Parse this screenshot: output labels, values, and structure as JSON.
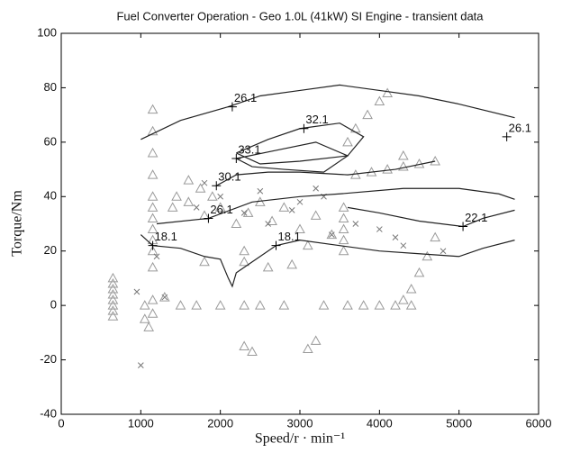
{
  "chart_data": {
    "type": "contour",
    "title": "Fuel Converter Operation - Geo 1.0L (41kW) SI Engine - transient data",
    "x_label": "Speed/r · min⁻¹",
    "y_label": "Torque/Nm",
    "xlim": [
      0,
      6000
    ],
    "xticks": [
      0,
      1000,
      2000,
      3000,
      4000,
      5000,
      6000
    ],
    "ylim": [
      -40,
      100
    ],
    "yticks": [
      -40,
      -20,
      0,
      20,
      40,
      60,
      80,
      100
    ],
    "contour_color": "#222222",
    "contours": [
      {
        "level": 26.1,
        "x": [
          1000,
          1500,
          2100,
          2500,
          3000,
          3500,
          4000,
          4500,
          5000,
          5700
        ],
        "y": [
          61,
          68,
          73,
          77,
          79,
          81,
          79,
          77,
          74,
          69
        ],
        "label_points": [
          [
            2150,
            73
          ],
          [
            5600,
            62
          ]
        ]
      },
      {
        "level": 32.1,
        "x": [
          2200,
          2600,
          3000,
          3500,
          3800,
          3600,
          3000,
          2500,
          2200
        ],
        "y": [
          56,
          61,
          65,
          67,
          62,
          55,
          53,
          52,
          56
        ],
        "label_points": [
          [
            3050,
            65
          ]
        ]
      },
      {
        "level": 33.1,
        "x": [
          2200,
          2700,
          3200,
          3600,
          3300,
          2800,
          2400,
          2200
        ],
        "y": [
          54,
          57,
          60,
          55,
          49,
          50,
          51,
          54
        ],
        "label_points": [
          [
            2200,
            54
          ]
        ]
      },
      {
        "level": 30.1,
        "x": [
          1950,
          2200,
          2600,
          3000,
          3600,
          4200,
          4700
        ],
        "y": [
          44,
          48,
          49,
          49,
          48,
          50,
          53
        ],
        "label_points": [
          [
            1950,
            44
          ]
        ]
      },
      {
        "level": 26.1,
        "x": [
          1200,
          1850,
          2400,
          3000,
          3500,
          4300,
          5000,
          5500,
          5700
        ],
        "y": [
          30,
          32,
          38,
          40,
          41,
          43,
          43,
          41,
          39
        ],
        "label_points": [
          [
            1850,
            32
          ]
        ]
      },
      {
        "level": 22.1,
        "x": [
          3600,
          4000,
          4500,
          5050,
          5300,
          5700
        ],
        "y": [
          36,
          34,
          31,
          29,
          32,
          35
        ],
        "label_points": [
          [
            5050,
            29
          ]
        ]
      },
      {
        "level": 18.1,
        "x": [
          1000,
          1150,
          1500,
          1800,
          2000,
          2100,
          2150,
          2200,
          2500,
          2700,
          3000,
          3500,
          4000,
          4500,
          5000,
          5300,
          5700
        ],
        "y": [
          26,
          22,
          21,
          18,
          17,
          10,
          7,
          12,
          18,
          22,
          24,
          22,
          20,
          19,
          18,
          21,
          24
        ],
        "label_points": [
          [
            1150,
            22
          ],
          [
            2700,
            22
          ]
        ]
      }
    ],
    "points": [
      {
        "marker": "triangle",
        "color": "#9a9a9a",
        "x": [
          650,
          650,
          650,
          650,
          650,
          650,
          650,
          650,
          1150,
          1150,
          1150,
          1150,
          1150,
          1150,
          1150,
          1150,
          1150,
          1150,
          1150,
          1150,
          1150,
          1050,
          1050,
          1100,
          1300,
          1450,
          1600,
          1750,
          1900,
          1800,
          2000,
          2200,
          2350,
          2500,
          2650,
          2800,
          3000,
          3200,
          3400,
          3600,
          3800,
          4000,
          4200,
          4400,
          1500,
          1700,
          2000,
          2300,
          2500,
          2800,
          3300,
          3550,
          3550,
          3550,
          3550,
          3550,
          3700,
          3900,
          4100,
          4300,
          4500,
          4700,
          3600,
          3700,
          3850,
          4000,
          4100,
          2300,
          2400,
          3200,
          3100,
          4300,
          4400,
          4500,
          4600,
          4700,
          2300,
          2300,
          1800,
          2600,
          2900,
          3100,
          4300,
          1600,
          1400
        ],
        "y": [
          10,
          8,
          6,
          4,
          2,
          0,
          -2,
          -4,
          72,
          64,
          56,
          48,
          40,
          36,
          32,
          28,
          24,
          20,
          14,
          -3,
          2,
          0,
          -5,
          -8,
          3,
          40,
          38,
          43,
          40,
          33,
          36,
          30,
          34,
          38,
          31,
          36,
          28,
          33,
          26,
          0,
          0,
          0,
          0,
          0,
          0,
          0,
          0,
          0,
          0,
          0,
          0,
          36,
          32,
          28,
          24,
          20,
          48,
          49,
          50,
          51,
          52,
          53,
          60,
          65,
          70,
          75,
          78,
          -15,
          -17,
          -13,
          -16,
          2,
          6,
          12,
          18,
          25,
          20,
          16,
          16,
          14,
          15,
          22,
          55,
          46,
          36
        ]
      },
      {
        "marker": "x",
        "color": "#777777",
        "x": [
          1000,
          950,
          1300,
          1800,
          2000,
          2300,
          2600,
          3000,
          3300,
          3200,
          2900,
          3400,
          4300,
          4200,
          4000,
          4800,
          1700,
          2500,
          1200,
          3700
        ],
        "y": [
          -22,
          5,
          3,
          45,
          40,
          34,
          30,
          38,
          40,
          43,
          35,
          26,
          22,
          25,
          28,
          20,
          36,
          42,
          18,
          30
        ]
      }
    ]
  }
}
